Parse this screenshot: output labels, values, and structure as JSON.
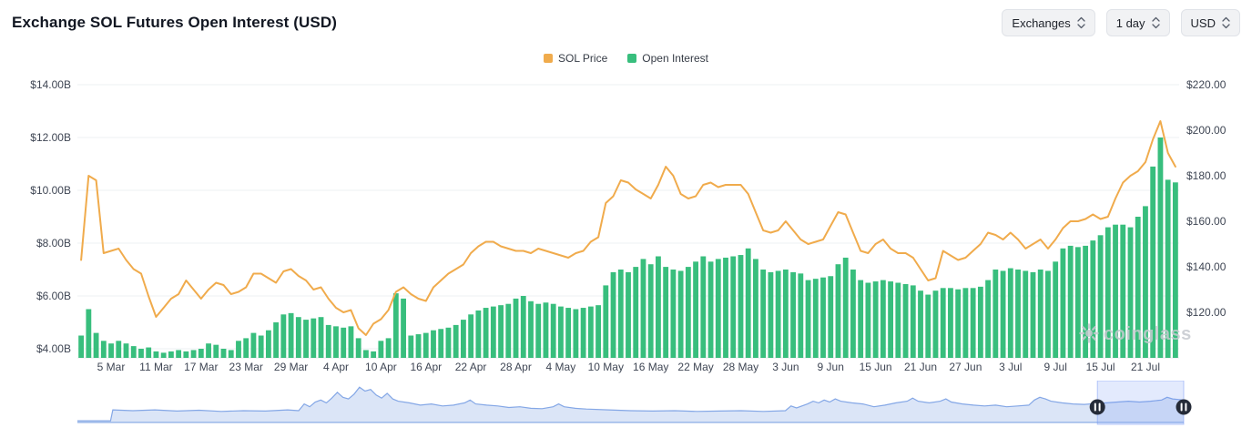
{
  "header": {
    "title": "Exchange SOL Futures Open Interest (USD)",
    "controls": [
      {
        "label": "Exchanges"
      },
      {
        "label": "1 day"
      },
      {
        "label": "USD"
      }
    ]
  },
  "legend": [
    {
      "label": "SOL Price"
    },
    {
      "label": "Open Interest"
    }
  ],
  "watermark": "coinglass",
  "chart_data": {
    "type": "mixed",
    "title": "Exchange SOL Futures Open Interest (USD)",
    "grid": true,
    "legend_position": "top-center",
    "x_tick_labels": [
      "5 Mar",
      "11 Mar",
      "17 Mar",
      "23 Mar",
      "29 Mar",
      "4 Apr",
      "10 Apr",
      "16 Apr",
      "22 Apr",
      "28 Apr",
      "4 May",
      "10 May",
      "16 May",
      "22 May",
      "28 May",
      "3 Jun",
      "9 Jun",
      "15 Jun",
      "21 Jun",
      "27 Jun",
      "3 Jul",
      "9 Jul",
      "15 Jul",
      "21 Jul"
    ],
    "x_tick_indices": [
      4,
      10,
      16,
      22,
      28,
      34,
      40,
      46,
      52,
      58,
      64,
      70,
      76,
      82,
      88,
      94,
      100,
      106,
      112,
      118,
      124,
      130,
      136,
      142
    ],
    "left_axis": {
      "ticks": [
        "$14.00B",
        "$12.00B",
        "$10.00B",
        "$8.00B",
        "$6.00B",
        "$4.00B"
      ],
      "tick_values": [
        14,
        12,
        10,
        8,
        6,
        4
      ],
      "unit": "USD billions"
    },
    "right_axis": {
      "ticks": [
        "$220.00",
        "$200.00",
        "$180.00",
        "$160.00",
        "$140.00",
        "$120.00"
      ],
      "tick_values": [
        220,
        200,
        180,
        160,
        140,
        120
      ],
      "unit": "USD"
    },
    "series": [
      {
        "name": "SOL Price",
        "type": "line",
        "axis": "right",
        "color": "#f0ab4c",
        "values": [
          143,
          180,
          178,
          146,
          147,
          148,
          143,
          139,
          137,
          127,
          118,
          122,
          126,
          128,
          134,
          130,
          126,
          130,
          133,
          132,
          128,
          129,
          131,
          137,
          137,
          135,
          133,
          138,
          139,
          136,
          134,
          130,
          131,
          126,
          122,
          120,
          121,
          113,
          110,
          115,
          117,
          121,
          129,
          131,
          128,
          126,
          125,
          131,
          134,
          137,
          139,
          141,
          146,
          149,
          151,
          151,
          149,
          148,
          147,
          147,
          146,
          148,
          147,
          146,
          145,
          144,
          146,
          147,
          151,
          153,
          168,
          171,
          178,
          177,
          174,
          172,
          170,
          176,
          184,
          180,
          172,
          170,
          171,
          176,
          177,
          175,
          176,
          176,
          176,
          172,
          164,
          156,
          155,
          156,
          160,
          156,
          152,
          150,
          151,
          152,
          158,
          164,
          163,
          155,
          147,
          146,
          150,
          152,
          148,
          146,
          146,
          144,
          139,
          134,
          135,
          147,
          145,
          143,
          144,
          147,
          150,
          155,
          154,
          152,
          155,
          152,
          148,
          150,
          152,
          148,
          152,
          157,
          160,
          160,
          161,
          163,
          161,
          162,
          170,
          177,
          180,
          182,
          186,
          196,
          204,
          190,
          184
        ]
      },
      {
        "name": "Open Interest",
        "type": "bar",
        "axis": "left",
        "color": "#38be7d",
        "values": [
          4.5,
          5.5,
          4.6,
          4.3,
          4.2,
          4.3,
          4.2,
          4.1,
          4.0,
          4.05,
          3.9,
          3.85,
          3.9,
          3.95,
          3.9,
          3.95,
          4.0,
          4.2,
          4.15,
          4.0,
          3.95,
          4.3,
          4.4,
          4.6,
          4.5,
          4.7,
          5.0,
          5.3,
          5.35,
          5.2,
          5.1,
          5.15,
          5.2,
          4.9,
          4.85,
          4.8,
          4.85,
          4.4,
          3.95,
          3.9,
          4.3,
          4.4,
          6.1,
          5.9,
          4.5,
          4.55,
          4.6,
          4.7,
          4.75,
          4.8,
          4.9,
          5.1,
          5.3,
          5.45,
          5.55,
          5.6,
          5.65,
          5.7,
          5.9,
          6.0,
          5.8,
          5.7,
          5.75,
          5.7,
          5.6,
          5.55,
          5.5,
          5.55,
          5.6,
          5.65,
          6.4,
          6.9,
          7.0,
          6.9,
          7.1,
          7.4,
          7.2,
          7.5,
          7.1,
          7.0,
          6.95,
          7.1,
          7.3,
          7.5,
          7.3,
          7.4,
          7.45,
          7.5,
          7.55,
          7.8,
          7.4,
          7.0,
          6.9,
          6.95,
          7.0,
          6.9,
          6.85,
          6.6,
          6.65,
          6.7,
          6.75,
          7.2,
          7.45,
          7.0,
          6.6,
          6.5,
          6.55,
          6.6,
          6.55,
          6.5,
          6.45,
          6.4,
          6.2,
          6.05,
          6.2,
          6.3,
          6.3,
          6.25,
          6.3,
          6.3,
          6.35,
          6.6,
          7.0,
          6.95,
          7.05,
          7.0,
          6.95,
          6.9,
          7.0,
          6.95,
          7.3,
          7.8,
          7.9,
          7.85,
          7.9,
          8.1,
          8.3,
          8.6,
          8.7,
          8.7,
          8.6,
          9.0,
          9.4,
          10.9,
          12.0,
          10.4,
          10.3
        ]
      }
    ]
  },
  "navigator": {
    "window": [
      0.922,
      1.0
    ],
    "points": [
      [
        0,
        0.02
      ],
      [
        0.03,
        0.02
      ],
      [
        0.032,
        0.3
      ],
      [
        0.05,
        0.28
      ],
      [
        0.07,
        0.3
      ],
      [
        0.09,
        0.27
      ],
      [
        0.11,
        0.29
      ],
      [
        0.13,
        0.26
      ],
      [
        0.15,
        0.28
      ],
      [
        0.17,
        0.27
      ],
      [
        0.19,
        0.3
      ],
      [
        0.2,
        0.28
      ],
      [
        0.205,
        0.45
      ],
      [
        0.21,
        0.38
      ],
      [
        0.215,
        0.5
      ],
      [
        0.22,
        0.55
      ],
      [
        0.225,
        0.48
      ],
      [
        0.23,
        0.6
      ],
      [
        0.235,
        0.75
      ],
      [
        0.24,
        0.62
      ],
      [
        0.245,
        0.58
      ],
      [
        0.25,
        0.7
      ],
      [
        0.255,
        0.88
      ],
      [
        0.26,
        0.78
      ],
      [
        0.265,
        0.82
      ],
      [
        0.27,
        0.68
      ],
      [
        0.275,
        0.6
      ],
      [
        0.28,
        0.72
      ],
      [
        0.285,
        0.58
      ],
      [
        0.29,
        0.52
      ],
      [
        0.3,
        0.48
      ],
      [
        0.31,
        0.42
      ],
      [
        0.32,
        0.45
      ],
      [
        0.33,
        0.4
      ],
      [
        0.34,
        0.42
      ],
      [
        0.35,
        0.48
      ],
      [
        0.355,
        0.55
      ],
      [
        0.36,
        0.45
      ],
      [
        0.37,
        0.42
      ],
      [
        0.38,
        0.4
      ],
      [
        0.39,
        0.36
      ],
      [
        0.4,
        0.38
      ],
      [
        0.41,
        0.34
      ],
      [
        0.42,
        0.33
      ],
      [
        0.43,
        0.38
      ],
      [
        0.435,
        0.45
      ],
      [
        0.44,
        0.38
      ],
      [
        0.45,
        0.34
      ],
      [
        0.46,
        0.32
      ],
      [
        0.48,
        0.3
      ],
      [
        0.5,
        0.28
      ],
      [
        0.52,
        0.27
      ],
      [
        0.54,
        0.28
      ],
      [
        0.56,
        0.26
      ],
      [
        0.58,
        0.27
      ],
      [
        0.6,
        0.28
      ],
      [
        0.62,
        0.26
      ],
      [
        0.64,
        0.28
      ],
      [
        0.645,
        0.4
      ],
      [
        0.65,
        0.35
      ],
      [
        0.66,
        0.45
      ],
      [
        0.665,
        0.52
      ],
      [
        0.67,
        0.48
      ],
      [
        0.675,
        0.55
      ],
      [
        0.68,
        0.5
      ],
      [
        0.685,
        0.58
      ],
      [
        0.69,
        0.52
      ],
      [
        0.7,
        0.48
      ],
      [
        0.71,
        0.45
      ],
      [
        0.72,
        0.38
      ],
      [
        0.73,
        0.42
      ],
      [
        0.74,
        0.48
      ],
      [
        0.75,
        0.52
      ],
      [
        0.755,
        0.6
      ],
      [
        0.76,
        0.52
      ],
      [
        0.77,
        0.48
      ],
      [
        0.78,
        0.52
      ],
      [
        0.785,
        0.58
      ],
      [
        0.79,
        0.5
      ],
      [
        0.8,
        0.45
      ],
      [
        0.81,
        0.42
      ],
      [
        0.82,
        0.4
      ],
      [
        0.83,
        0.42
      ],
      [
        0.84,
        0.38
      ],
      [
        0.85,
        0.4
      ],
      [
        0.86,
        0.42
      ],
      [
        0.865,
        0.55
      ],
      [
        0.87,
        0.62
      ],
      [
        0.875,
        0.58
      ],
      [
        0.88,
        0.52
      ],
      [
        0.89,
        0.48
      ],
      [
        0.9,
        0.45
      ],
      [
        0.91,
        0.44
      ],
      [
        0.92,
        0.46
      ],
      [
        0.93,
        0.48
      ],
      [
        0.94,
        0.5
      ],
      [
        0.95,
        0.52
      ],
      [
        0.96,
        0.5
      ],
      [
        0.97,
        0.52
      ],
      [
        0.98,
        0.55
      ],
      [
        0.985,
        0.62
      ],
      [
        0.99,
        0.58
      ],
      [
        1,
        0.55
      ]
    ]
  }
}
